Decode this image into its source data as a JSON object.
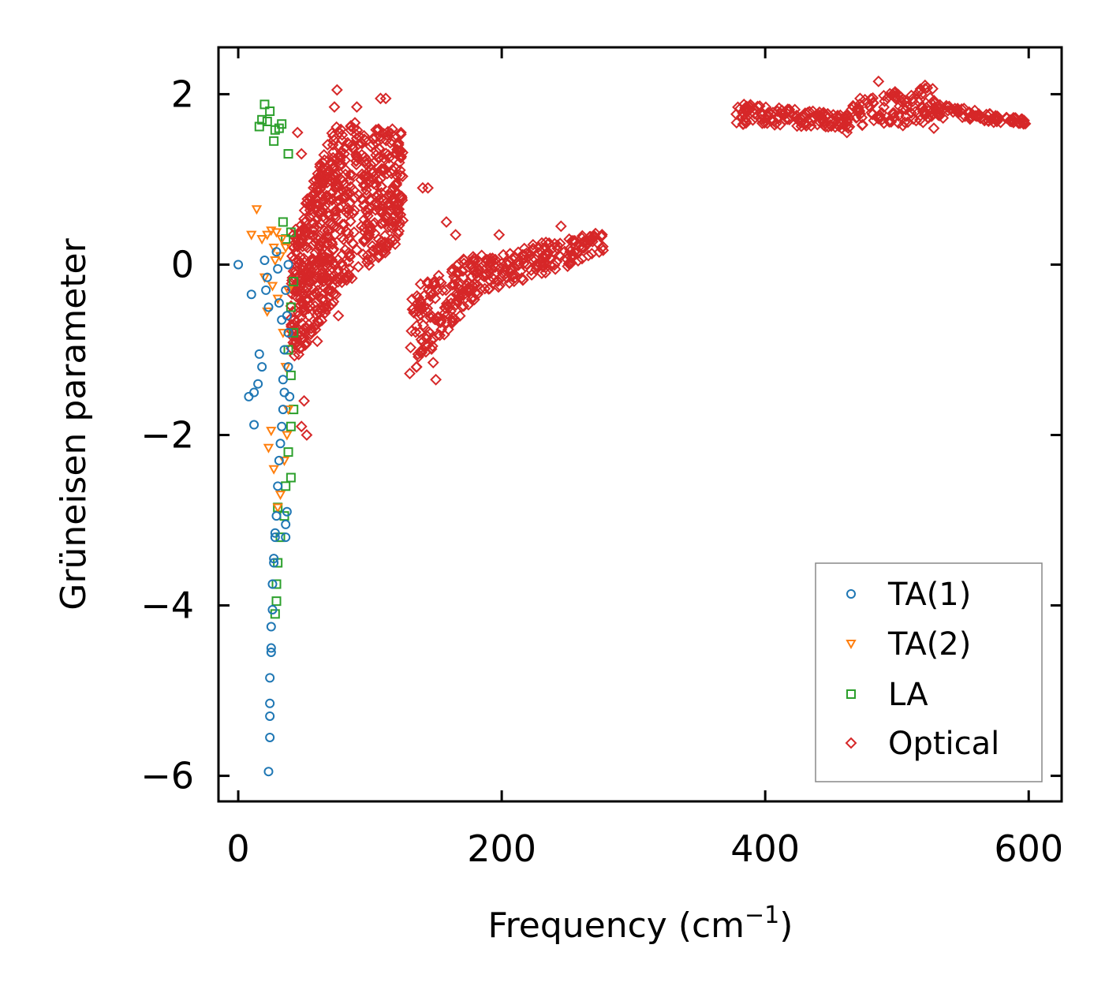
{
  "chart_data": {
    "type": "scatter",
    "title": "",
    "xlabel": "Frequency (cm",
    "xlabel_sup": "−1",
    "xlabel_tail": ")",
    "ylabel": "Grüneisen parameter",
    "xlim": [
      -15,
      625
    ],
    "ylim": [
      -6.3,
      2.55
    ],
    "xticks": [
      0,
      200,
      400,
      600
    ],
    "xtick_labels": [
      "0",
      "200",
      "400",
      "600"
    ],
    "yticks": [
      2,
      0,
      -2,
      -4,
      -6
    ],
    "ytick_labels": [
      "2",
      "0",
      "−2",
      "−4",
      "−6"
    ],
    "legend_position": "bottom-right",
    "series": [
      {
        "name": "TA(1)",
        "marker": "circle",
        "color": "#1f77b4",
        "points": [
          [
            0,
            0
          ],
          [
            8,
            -1.55
          ],
          [
            10,
            -0.35
          ],
          [
            12,
            -1.5
          ],
          [
            15,
            -1.4
          ],
          [
            16,
            -1.05
          ],
          [
            18,
            -1.2
          ],
          [
            20,
            0.05
          ],
          [
            21,
            -0.3
          ],
          [
            22,
            -0.15
          ],
          [
            23,
            -5.95
          ],
          [
            23,
            -0.5
          ],
          [
            24,
            -5.55
          ],
          [
            24,
            -5.3
          ],
          [
            24,
            -5.15
          ],
          [
            24,
            -4.85
          ],
          [
            25,
            -4.55
          ],
          [
            25,
            -4.5
          ],
          [
            25,
            -4.25
          ],
          [
            26,
            -4.05
          ],
          [
            26,
            -3.75
          ],
          [
            27,
            -3.5
          ],
          [
            27,
            -3.45
          ],
          [
            28,
            -3.2
          ],
          [
            28,
            -3.15
          ],
          [
            29,
            -2.95
          ],
          [
            30,
            -2.6
          ],
          [
            31,
            -2.3
          ],
          [
            32,
            -2.1
          ],
          [
            33,
            -1.9
          ],
          [
            34,
            -1.7
          ],
          [
            35,
            -1.5
          ],
          [
            36,
            -3.05
          ],
          [
            36,
            -3.2
          ],
          [
            37,
            -2.9
          ],
          [
            38,
            -1.2
          ],
          [
            38,
            -0.8
          ],
          [
            29,
            0.15
          ],
          [
            30,
            -0.05
          ],
          [
            31,
            -0.45
          ],
          [
            33,
            -0.65
          ],
          [
            34,
            -1.35
          ],
          [
            35,
            -1.0
          ],
          [
            36,
            -0.3
          ],
          [
            37,
            -0.6
          ],
          [
            38,
            0.0
          ],
          [
            39,
            -1.55
          ],
          [
            12,
            -1.88
          ]
        ]
      },
      {
        "name": "TA(2)",
        "marker": "triangle-down",
        "color": "#ff7f0e",
        "points": [
          [
            14,
            0.65
          ],
          [
            10,
            0.35
          ],
          [
            18,
            0.3
          ],
          [
            22,
            0.35
          ],
          [
            25,
            0.4
          ],
          [
            27,
            0.2
          ],
          [
            20,
            -0.15
          ],
          [
            22,
            -0.55
          ],
          [
            26,
            -0.25
          ],
          [
            28,
            0.05
          ],
          [
            30,
            -0.4
          ],
          [
            32,
            0.1
          ],
          [
            34,
            -0.8
          ],
          [
            36,
            -1.2
          ],
          [
            38,
            -1.7
          ],
          [
            25,
            -1.95
          ],
          [
            23,
            -2.15
          ],
          [
            27,
            -2.4
          ],
          [
            30,
            -2.85
          ],
          [
            32,
            -2.7
          ],
          [
            35,
            -2.3
          ],
          [
            37,
            -2.0
          ],
          [
            29,
            0.38
          ],
          [
            33,
            0.3
          ],
          [
            36,
            0.2
          ],
          [
            38,
            -0.3
          ]
        ]
      },
      {
        "name": "LA",
        "marker": "square",
        "color": "#2ca02c",
        "points": [
          [
            16,
            1.62
          ],
          [
            18,
            1.7
          ],
          [
            20,
            1.88
          ],
          [
            22,
            1.68
          ],
          [
            24,
            1.8
          ],
          [
            27,
            1.45
          ],
          [
            28,
            1.58
          ],
          [
            31,
            1.6
          ],
          [
            33,
            1.65
          ],
          [
            38,
            1.3
          ],
          [
            34,
            0.5
          ],
          [
            36,
            0.3
          ],
          [
            40,
            0.38
          ],
          [
            42,
            -0.2
          ],
          [
            40,
            -0.5
          ],
          [
            42,
            -0.8
          ],
          [
            38,
            -1.0
          ],
          [
            40,
            -1.3
          ],
          [
            42,
            -1.7
          ],
          [
            40,
            -1.9
          ],
          [
            38,
            -2.2
          ],
          [
            40,
            -2.5
          ],
          [
            36,
            -2.6
          ],
          [
            35,
            -2.95
          ],
          [
            32,
            -3.2
          ],
          [
            30,
            -3.5
          ],
          [
            29,
            -3.75
          ],
          [
            29,
            -3.95
          ],
          [
            28,
            -4.1
          ],
          [
            30,
            -2.85
          ]
        ]
      },
      {
        "name": "Optical",
        "marker": "diamond",
        "color": "#d62728",
        "bands": [
          {
            "x0": 40,
            "x1": 75,
            "lo0": -1.2,
            "lo1": -0.4,
            "hi0": 0.3,
            "hi1": 1.7,
            "n": 380
          },
          {
            "x0": 75,
            "x1": 125,
            "lo0": -0.3,
            "lo1": 0.3,
            "hi0": 1.7,
            "hi1": 1.6,
            "n": 330
          },
          {
            "x0": 130,
            "x1": 180,
            "lo0": -1.3,
            "lo1": -0.4,
            "hi0": -0.3,
            "hi1": 0.15,
            "n": 150
          },
          {
            "x0": 180,
            "x1": 278,
            "lo0": -0.4,
            "lo1": 0.15,
            "hi0": 0.1,
            "hi1": 0.4,
            "n": 180
          },
          {
            "x0": 378,
            "x1": 465,
            "lo0": 1.65,
            "lo1": 1.6,
            "hi0": 1.9,
            "hi1": 1.75,
            "n": 130
          },
          {
            "x0": 465,
            "x1": 530,
            "lo0": 1.6,
            "lo1": 1.65,
            "hi0": 1.9,
            "hi1": 2.15,
            "n": 110
          },
          {
            "x0": 530,
            "x1": 598,
            "lo0": 1.7,
            "lo1": 1.65,
            "hi0": 1.9,
            "hi1": 1.7,
            "n": 90
          }
        ],
        "extra_points": [
          [
            75,
            2.05
          ],
          [
            73,
            1.85
          ],
          [
            108,
            1.95
          ],
          [
            112,
            1.95
          ],
          [
            45,
            1.55
          ],
          [
            48,
            1.3
          ],
          [
            52,
            -2.0
          ],
          [
            48,
            -1.9
          ],
          [
            50,
            -1.6
          ],
          [
            76,
            -0.6
          ],
          [
            60,
            -0.9
          ],
          [
            90,
            1.85
          ],
          [
            150,
            -1.35
          ],
          [
            148,
            -1.15
          ],
          [
            158,
            0.5
          ],
          [
            165,
            0.35
          ],
          [
            198,
            0.35
          ],
          [
            472,
            1.95
          ],
          [
            455,
            1.75
          ],
          [
            458,
            1.6
          ],
          [
            462,
            1.55
          ],
          [
            486,
            2.15
          ],
          [
            528,
            1.6
          ],
          [
            250,
            -0.02
          ],
          [
            245,
            0.45
          ],
          [
            113,
            0.7
          ],
          [
            140,
            0.9
          ],
          [
            144,
            0.9
          ]
        ]
      }
    ]
  }
}
